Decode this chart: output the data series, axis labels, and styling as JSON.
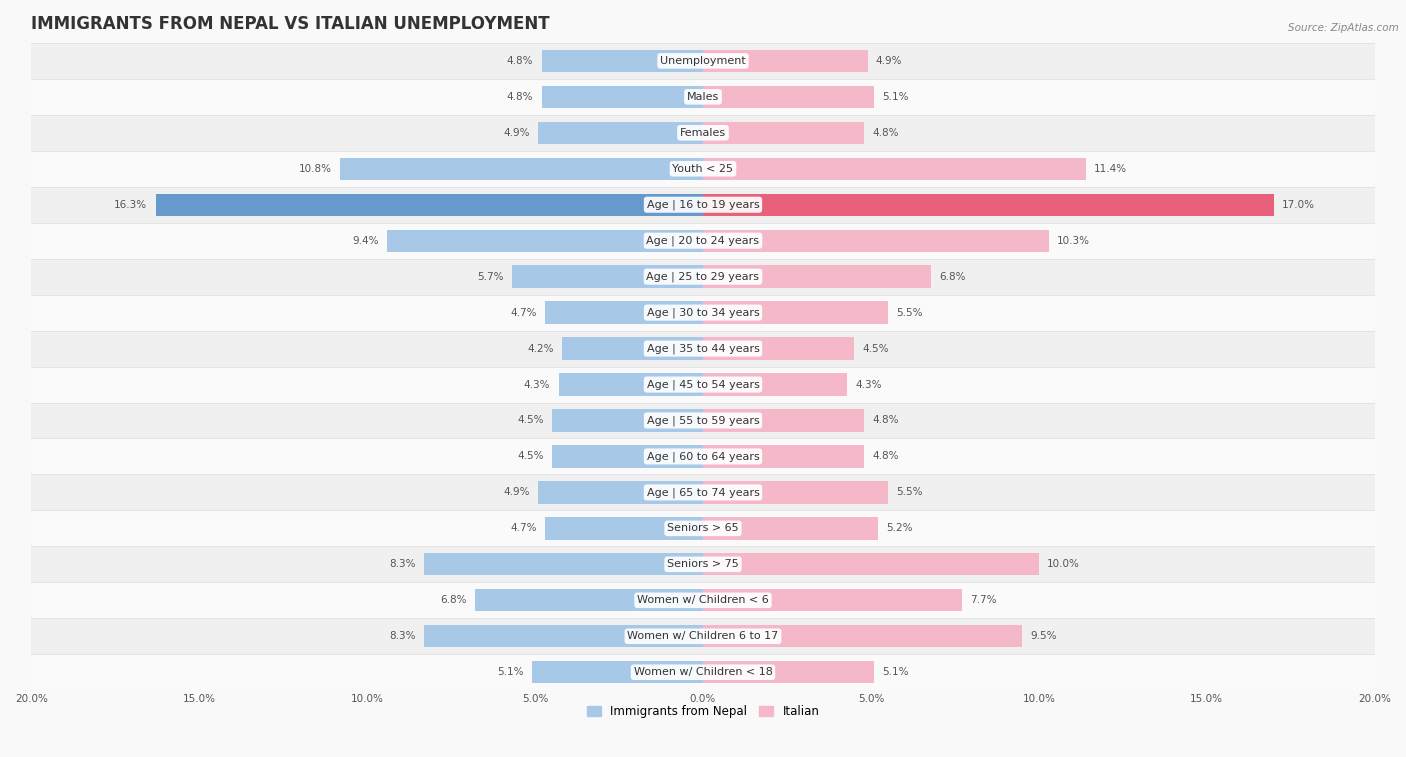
{
  "title": "IMMIGRANTS FROM NEPAL VS ITALIAN UNEMPLOYMENT",
  "source": "Source: ZipAtlas.com",
  "categories": [
    "Unemployment",
    "Males",
    "Females",
    "Youth < 25",
    "Age | 16 to 19 years",
    "Age | 20 to 24 years",
    "Age | 25 to 29 years",
    "Age | 30 to 34 years",
    "Age | 35 to 44 years",
    "Age | 45 to 54 years",
    "Age | 55 to 59 years",
    "Age | 60 to 64 years",
    "Age | 65 to 74 years",
    "Seniors > 65",
    "Seniors > 75",
    "Women w/ Children < 6",
    "Women w/ Children 6 to 17",
    "Women w/ Children < 18"
  ],
  "nepal_values": [
    4.8,
    4.8,
    4.9,
    10.8,
    16.3,
    9.4,
    5.7,
    4.7,
    4.2,
    4.3,
    4.5,
    4.5,
    4.9,
    4.7,
    8.3,
    6.8,
    8.3,
    5.1
  ],
  "italian_values": [
    4.9,
    5.1,
    4.8,
    11.4,
    17.0,
    10.3,
    6.8,
    5.5,
    4.5,
    4.3,
    4.8,
    4.8,
    5.5,
    5.2,
    10.0,
    7.7,
    9.5,
    5.1
  ],
  "nepal_color": "#a8c8e8",
  "italian_color": "#f4b8c8",
  "nepal_highlight_color": "#6699cc",
  "italian_highlight_color": "#e8607a",
  "highlight_row": 4,
  "background_color": "#f9f9f9",
  "row_even_color": "#f0f0f0",
  "row_odd_color": "#fafafa",
  "highlight_row_color": "#e8e8e8",
  "axis_limit": 20.0,
  "bar_height": 0.62,
  "title_fontsize": 12,
  "label_fontsize": 8,
  "value_fontsize": 7.5,
  "legend_fontsize": 8.5
}
